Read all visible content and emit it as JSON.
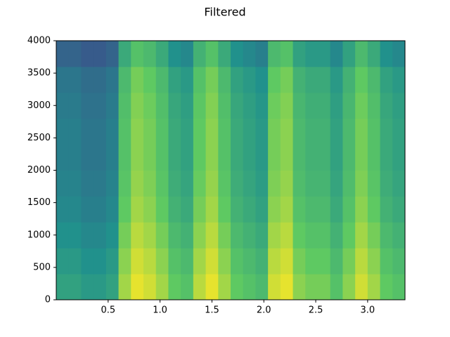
{
  "chart_data": {
    "type": "spectrogram",
    "title": "Filtered",
    "xlim": [
      0,
      3.36
    ],
    "xticks": [
      0.5,
      {
        "value": 1,
        "label": "1.0"
      },
      1.5,
      {
        "value": 2,
        "label": "2.0"
      },
      2.5,
      {
        "value": 3,
        "label": "3.0"
      }
    ],
    "ylim": [
      0,
      4000
    ],
    "yticks": [
      0,
      500,
      1000,
      1500,
      2000,
      2500,
      3000,
      3500,
      4000
    ],
    "zlim": [
      -0.4,
      1.0
    ],
    "colormap": [
      "#440154",
      "#3b528b",
      "#21918c",
      "#5ec962",
      "#fde725"
    ],
    "z": [
      [
        0.4,
        0.4,
        0.35,
        0.35,
        0.4,
        0.8,
        0.95,
        0.9,
        0.8,
        0.65,
        0.6,
        0.85,
        0.95,
        0.8,
        0.65,
        0.6,
        0.55,
        0.9,
        0.95,
        0.75,
        0.7,
        0.7,
        0.6,
        0.75,
        0.9,
        0.8,
        0.65,
        0.6
      ],
      [
        0.35,
        0.35,
        0.3,
        0.3,
        0.35,
        0.75,
        0.9,
        0.85,
        0.75,
        0.6,
        0.55,
        0.8,
        0.9,
        0.75,
        0.6,
        0.55,
        0.5,
        0.85,
        0.9,
        0.7,
        0.65,
        0.65,
        0.55,
        0.7,
        0.85,
        0.75,
        0.6,
        0.55
      ],
      [
        0.3,
        0.3,
        0.25,
        0.25,
        0.3,
        0.7,
        0.85,
        0.8,
        0.7,
        0.55,
        0.5,
        0.75,
        0.85,
        0.7,
        0.55,
        0.5,
        0.45,
        0.8,
        0.85,
        0.65,
        0.6,
        0.6,
        0.5,
        0.65,
        0.8,
        0.7,
        0.55,
        0.5
      ],
      [
        0.25,
        0.25,
        0.2,
        0.2,
        0.25,
        0.65,
        0.8,
        0.75,
        0.65,
        0.5,
        0.45,
        0.7,
        0.8,
        0.65,
        0.5,
        0.45,
        0.4,
        0.75,
        0.8,
        0.6,
        0.55,
        0.55,
        0.45,
        0.6,
        0.75,
        0.65,
        0.5,
        0.45
      ],
      [
        0.22,
        0.22,
        0.17,
        0.17,
        0.22,
        0.62,
        0.77,
        0.72,
        0.62,
        0.47,
        0.42,
        0.67,
        0.77,
        0.62,
        0.47,
        0.42,
        0.37,
        0.72,
        0.77,
        0.57,
        0.52,
        0.52,
        0.42,
        0.57,
        0.72,
        0.62,
        0.47,
        0.42
      ],
      [
        0.2,
        0.2,
        0.15,
        0.15,
        0.2,
        0.6,
        0.75,
        0.7,
        0.6,
        0.45,
        0.4,
        0.65,
        0.75,
        0.6,
        0.45,
        0.4,
        0.35,
        0.7,
        0.75,
        0.55,
        0.5,
        0.5,
        0.4,
        0.55,
        0.7,
        0.6,
        0.45,
        0.4
      ],
      [
        0.2,
        0.2,
        0.15,
        0.15,
        0.2,
        0.6,
        0.75,
        0.7,
        0.6,
        0.45,
        0.4,
        0.65,
        0.75,
        0.6,
        0.45,
        0.4,
        0.35,
        0.7,
        0.75,
        0.55,
        0.5,
        0.5,
        0.4,
        0.55,
        0.7,
        0.6,
        0.45,
        0.4
      ],
      [
        0.18,
        0.18,
        0.13,
        0.13,
        0.18,
        0.58,
        0.73,
        0.68,
        0.58,
        0.43,
        0.38,
        0.63,
        0.73,
        0.58,
        0.43,
        0.38,
        0.33,
        0.68,
        0.73,
        0.53,
        0.48,
        0.48,
        0.38,
        0.53,
        0.68,
        0.58,
        0.43,
        0.38
      ],
      [
        0.15,
        0.15,
        0.1,
        0.1,
        0.15,
        0.55,
        0.7,
        0.65,
        0.55,
        0.4,
        0.35,
        0.6,
        0.7,
        0.55,
        0.4,
        0.35,
        0.3,
        0.65,
        0.7,
        0.5,
        0.45,
        0.45,
        0.35,
        0.5,
        0.65,
        0.55,
        0.4,
        0.35
      ],
      [
        0.05,
        0.05,
        0,
        0,
        0.05,
        0.45,
        0.6,
        0.55,
        0.45,
        0.3,
        0.25,
        0.5,
        0.6,
        0.45,
        0.3,
        0.25,
        0.2,
        0.55,
        0.6,
        0.4,
        0.35,
        0.35,
        0.25,
        0.4,
        0.55,
        0.45,
        0.3,
        0.25
      ]
    ]
  }
}
